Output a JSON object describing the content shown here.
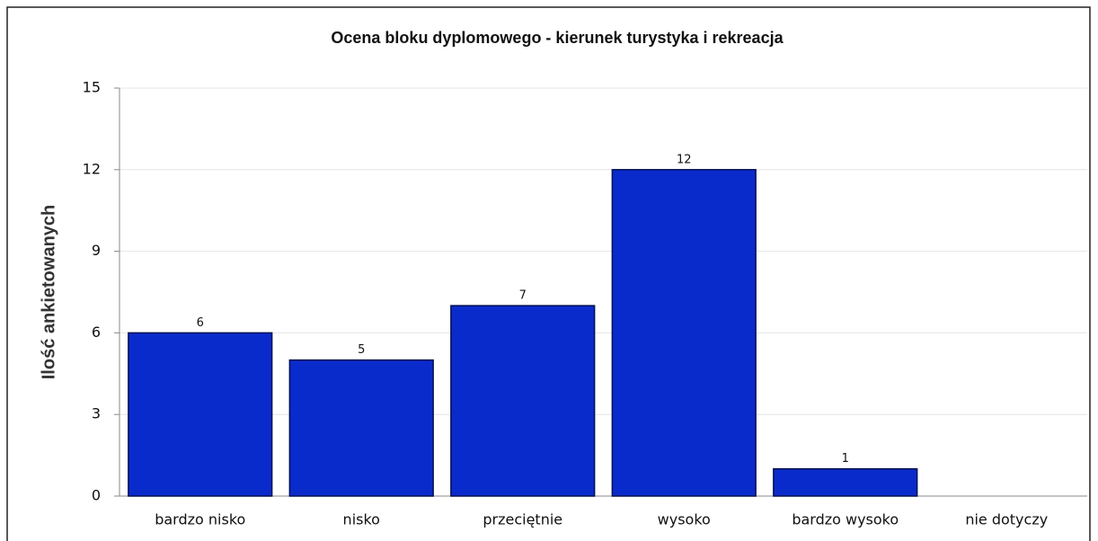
{
  "chart_data": {
    "type": "bar",
    "title": "Ocena bloku dyplomowego - kierunek turystyka i rekreacja",
    "y_label": "Ilość ankietowanych",
    "categories": [
      "bardzo nisko",
      "nisko",
      "przeciętnie",
      "wysoko",
      "bardzo wysoko",
      "nie dotyczy"
    ],
    "values": [
      6,
      5,
      7,
      12,
      1,
      0
    ],
    "color": "#0a2bcc",
    "ylim": [
      0,
      15
    ],
    "yticks": [
      0,
      3,
      6,
      9,
      12,
      15
    ],
    "grid": true
  }
}
